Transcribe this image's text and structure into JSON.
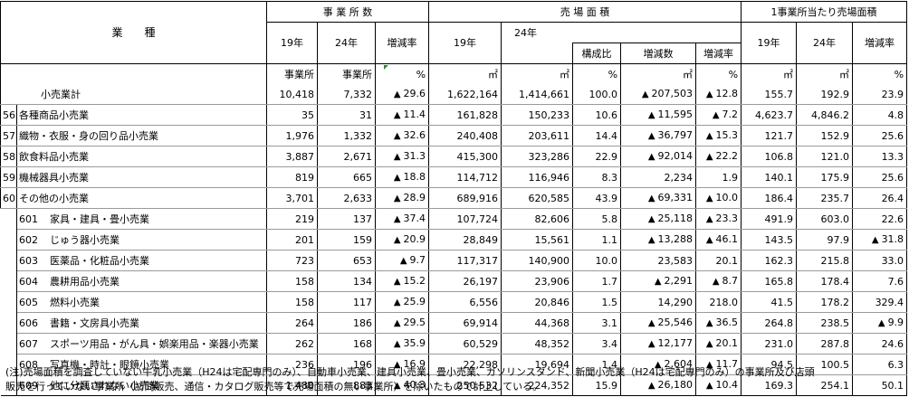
{
  "headers": {
    "industry": "業　　種",
    "establishments": "事 業 所 数",
    "floor_area": "売 場 面 積",
    "area_per_est": "1事業所当たり売場面積",
    "y19": "19年",
    "y24": "24年",
    "change_rate": "増減率",
    "share": "構成比",
    "change_amount": "増減数"
  },
  "units": {
    "est19": "事業所",
    "est24": "事業所",
    "rate": "%",
    "area19": "㎡",
    "area24": "㎡",
    "share": "%",
    "diff": "㎡",
    "area_rate": "%",
    "per19": "㎡",
    "per24": "㎡",
    "per_rate": "%"
  },
  "neg_mark": "▲",
  "rows": [
    {
      "code": "",
      "name": "小売業計",
      "est19": "10,418",
      "est24": "7,332",
      "est_rate": "29.6",
      "est_neg": true,
      "area19": "1,622,164",
      "area24": "1,414,661",
      "share": "100.0",
      "diff": "207,503",
      "diff_neg": true,
      "area_rate": "12.8",
      "area_rate_neg": true,
      "per19": "155.7",
      "per24": "192.9",
      "per_rate": "23.9",
      "per_neg": false
    },
    {
      "code": "56",
      "name": "各種商品小売業",
      "est19": "35",
      "est24": "31",
      "est_rate": "11.4",
      "est_neg": true,
      "area19": "161,828",
      "area24": "150,233",
      "share": "10.6",
      "diff": "11,595",
      "diff_neg": true,
      "area_rate": "7.2",
      "area_rate_neg": true,
      "per19": "4,623.7",
      "per24": "4,846.2",
      "per_rate": "4.8",
      "per_neg": false
    },
    {
      "code": "57",
      "name": "織物・衣服・身の回り品小売業",
      "est19": "1,976",
      "est24": "1,332",
      "est_rate": "32.6",
      "est_neg": true,
      "area19": "240,408",
      "area24": "203,611",
      "share": "14.4",
      "diff": "36,797",
      "diff_neg": true,
      "area_rate": "15.3",
      "area_rate_neg": true,
      "per19": "121.7",
      "per24": "152.9",
      "per_rate": "25.6",
      "per_neg": false
    },
    {
      "code": "58",
      "name": "飲食料品小売業",
      "est19": "3,887",
      "est24": "2,671",
      "est_rate": "31.3",
      "est_neg": true,
      "area19": "415,300",
      "area24": "323,286",
      "share": "22.9",
      "diff": "92,014",
      "diff_neg": true,
      "area_rate": "22.2",
      "area_rate_neg": true,
      "per19": "106.8",
      "per24": "121.0",
      "per_rate": "13.3",
      "per_neg": false
    },
    {
      "code": "59",
      "name": "機械器具小売業",
      "est19": "819",
      "est24": "665",
      "est_rate": "18.8",
      "est_neg": true,
      "area19": "114,712",
      "area24": "116,946",
      "share": "8.3",
      "diff": "2,234",
      "diff_neg": false,
      "area_rate": "1.9",
      "area_rate_neg": false,
      "per19": "140.1",
      "per24": "175.9",
      "per_rate": "25.6",
      "per_neg": false
    },
    {
      "code": "60",
      "name": "その他の小売業",
      "est19": "3,701",
      "est24": "2,633",
      "est_rate": "28.9",
      "est_neg": true,
      "area19": "689,916",
      "area24": "620,585",
      "share": "43.9",
      "diff": "69,331",
      "diff_neg": true,
      "area_rate": "10.0",
      "area_rate_neg": true,
      "per19": "186.4",
      "per24": "235.7",
      "per_rate": "26.4",
      "per_neg": false
    },
    {
      "code": "601",
      "name": "家具・建具・畳小売業",
      "est19": "219",
      "est24": "137",
      "est_rate": "37.4",
      "est_neg": true,
      "area19": "107,724",
      "area24": "82,606",
      "share": "5.8",
      "diff": "25,118",
      "diff_neg": true,
      "area_rate": "23.3",
      "area_rate_neg": true,
      "per19": "491.9",
      "per24": "603.0",
      "per_rate": "22.6",
      "per_neg": false
    },
    {
      "code": "602",
      "name": "じゅう器小売業",
      "est19": "201",
      "est24": "159",
      "est_rate": "20.9",
      "est_neg": true,
      "area19": "28,849",
      "area24": "15,561",
      "share": "1.1",
      "diff": "13,288",
      "diff_neg": true,
      "area_rate": "46.1",
      "area_rate_neg": true,
      "per19": "143.5",
      "per24": "97.9",
      "per_rate": "31.8",
      "per_neg": true
    },
    {
      "code": "603",
      "name": "医薬品・化粧品小売業",
      "est19": "723",
      "est24": "653",
      "est_rate": "9.7",
      "est_neg": true,
      "area19": "117,317",
      "area24": "140,900",
      "share": "10.0",
      "diff": "23,583",
      "diff_neg": false,
      "area_rate": "20.1",
      "area_rate_neg": false,
      "per19": "162.3",
      "per24": "215.8",
      "per_rate": "33.0",
      "per_neg": false
    },
    {
      "code": "604",
      "name": "農耕用品小売業",
      "est19": "158",
      "est24": "134",
      "est_rate": "15.2",
      "est_neg": true,
      "area19": "26,197",
      "area24": "23,906",
      "share": "1.7",
      "diff": "2,291",
      "diff_neg": true,
      "area_rate": "8.7",
      "area_rate_neg": true,
      "per19": "165.8",
      "per24": "178.4",
      "per_rate": "7.6",
      "per_neg": false
    },
    {
      "code": "605",
      "name": "燃料小売業",
      "est19": "158",
      "est24": "117",
      "est_rate": "25.9",
      "est_neg": true,
      "area19": "6,556",
      "area24": "20,846",
      "share": "1.5",
      "diff": "14,290",
      "diff_neg": false,
      "area_rate": "218.0",
      "area_rate_neg": false,
      "per19": "41.5",
      "per24": "178.2",
      "per_rate": "329.4",
      "per_neg": false
    },
    {
      "code": "606",
      "name": "書籍・文房具小売業",
      "est19": "264",
      "est24": "186",
      "est_rate": "29.5",
      "est_neg": true,
      "area19": "69,914",
      "area24": "44,368",
      "share": "3.1",
      "diff": "25,546",
      "diff_neg": true,
      "area_rate": "36.5",
      "area_rate_neg": true,
      "per19": "264.8",
      "per24": "238.5",
      "per_rate": "9.9",
      "per_neg": true
    },
    {
      "code": "607",
      "name": "スポーツ用品・がん具・娯楽用品・楽器小売業",
      "est19": "262",
      "est24": "168",
      "est_rate": "35.9",
      "est_neg": true,
      "area19": "60,529",
      "area24": "48,352",
      "share": "3.4",
      "diff": "12,177",
      "diff_neg": true,
      "area_rate": "20.1",
      "area_rate_neg": true,
      "per19": "231.0",
      "per24": "287.8",
      "per_rate": "24.6",
      "per_neg": false
    },
    {
      "code": "608",
      "name": "写真機・時計・眼鏡小売業",
      "est19": "236",
      "est24": "196",
      "est_rate": "16.9",
      "est_neg": true,
      "area19": "22,298",
      "area24": "19,694",
      "share": "1.4",
      "diff": "2,604",
      "diff_neg": true,
      "area_rate": "11.7",
      "area_rate_neg": true,
      "per19": "94.5",
      "per24": "100.5",
      "per_rate": "6.3",
      "per_neg": false
    },
    {
      "code": "609",
      "name": "他に分類されない小売業",
      "est19": "1,480",
      "est24": "883",
      "est_rate": "40.3",
      "est_neg": true,
      "area19": "250,532",
      "area24": "224,352",
      "share": "15.9",
      "diff": "26,180",
      "diff_neg": true,
      "area_rate": "10.4",
      "area_rate_neg": true,
      "per19": "169.3",
      "per24": "254.1",
      "per_rate": "50.1",
      "per_neg": false
    }
  ],
  "note": {
    "line1": "(注)売場面積を調査していない牛乳小売業（H24は宅配専門のみ）、自動車小売業、建具小売業、畳小売業、ガソリンスタンド、新聞小売業（H24は宅配専門のみ）の事業所及び店頭",
    "line2": "販売を行っていない事業所（訪問販売、通信・カタログ販売等で売場面積の無い事業所）を除いたもので計上している。"
  }
}
